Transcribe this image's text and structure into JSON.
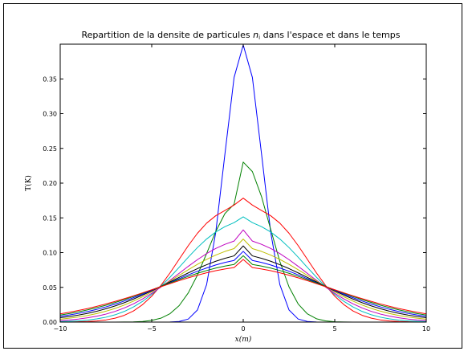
{
  "chart_data": {
    "type": "line",
    "title_main": "Repartition de la densite de particules ",
    "title_symbol": "n",
    "title_subscript": "i",
    "title_tail": " dans l'espace et dans le temps",
    "xlabel": "x(m)",
    "ylabel": "T(K)",
    "xlim": [
      -10,
      10
    ],
    "ylim": [
      0,
      0.4
    ],
    "x_ticks": [
      "−10",
      "−5",
      "0",
      "5",
      "10"
    ],
    "y_ticks": [
      "0.00",
      "0.05",
      "0.10",
      "0.15",
      "0.20",
      "0.25",
      "0.30",
      "0.35"
    ],
    "grid": false,
    "legend": "none",
    "x": [
      -10,
      -9.5,
      -9,
      -8.5,
      -8,
      -7.5,
      -7,
      -6.5,
      -6,
      -5.5,
      -5,
      -4.5,
      -4,
      -3.5,
      -3,
      -2.5,
      -2,
      -1.5,
      -1,
      -0.5,
      0,
      0.5,
      1,
      1.5,
      2,
      2.5,
      3,
      3.5,
      4,
      4.5,
      5,
      5.5,
      6,
      6.5,
      7,
      7.5,
      8,
      8.5,
      9,
      9.5,
      10
    ],
    "series": [
      {
        "color": "#0000ff",
        "values": [
          0.0,
          0.0,
          0.0,
          0.0,
          0.0,
          0.0,
          0.0,
          0.0,
          0.0,
          0.0,
          0.0,
          0.0,
          0.0001,
          0.0009,
          0.0044,
          0.0175,
          0.054,
          0.1295,
          0.242,
          0.3521,
          0.3989,
          0.3521,
          0.242,
          0.1295,
          0.054,
          0.0175,
          0.0044,
          0.0009,
          0.0001,
          0.0,
          0.0,
          0.0,
          0.0,
          0.0,
          0.0,
          0.0,
          0.0,
          0.0,
          0.0,
          0.0,
          0.0
        ]
      },
      {
        "color": "#008000",
        "values": [
          0.0,
          0.0,
          0.0,
          0.0,
          0.0,
          0.0,
          0.0,
          0.0001,
          0.0003,
          0.0009,
          0.0024,
          0.0056,
          0.0121,
          0.0237,
          0.0421,
          0.0678,
          0.0988,
          0.1305,
          0.1562,
          0.1696,
          0.2303,
          0.2166,
          0.1806,
          0.1334,
          0.0873,
          0.0507,
          0.0261,
          0.0119,
          0.0048,
          0.0017,
          0.0005,
          0.0001,
          0.0,
          0.0,
          0.0,
          0.0,
          0.0,
          0.0,
          0.0,
          0.0,
          0.0
        ]
      },
      {
        "color": "#ff0000",
        "values": [
          0.0001,
          0.0002,
          0.0004,
          0.0008,
          0.0016,
          0.0031,
          0.0056,
          0.0097,
          0.016,
          0.0251,
          0.0373,
          0.0527,
          0.0708,
          0.0905,
          0.1101,
          0.1279,
          0.1424,
          0.1531,
          0.1606,
          0.1684,
          0.1784,
          0.1684,
          0.1606,
          0.1531,
          0.1424,
          0.1279,
          0.1101,
          0.0905,
          0.0708,
          0.0527,
          0.0373,
          0.0251,
          0.016,
          0.0097,
          0.0056,
          0.0031,
          0.0016,
          0.0008,
          0.0004,
          0.0002,
          0.0001
        ]
      },
      {
        "color": "#00bfbf",
        "values": [
          0.0007,
          0.0011,
          0.0018,
          0.0029,
          0.0046,
          0.007,
          0.0105,
          0.0153,
          0.0217,
          0.0298,
          0.0397,
          0.0514,
          0.0646,
          0.0788,
          0.0934,
          0.1073,
          0.1196,
          0.1297,
          0.1374,
          0.1431,
          0.1515,
          0.1431,
          0.1374,
          0.1297,
          0.1196,
          0.1073,
          0.0934,
          0.0788,
          0.0646,
          0.0514,
          0.0397,
          0.0298,
          0.0217,
          0.0153,
          0.0105,
          0.007,
          0.0046,
          0.0029,
          0.0018,
          0.0011,
          0.0007
        ]
      },
      {
        "color": "#bf00bf",
        "values": [
          0.0022,
          0.0031,
          0.0044,
          0.0062,
          0.0085,
          0.0115,
          0.0154,
          0.0203,
          0.0262,
          0.0333,
          0.0414,
          0.0504,
          0.0601,
          0.0702,
          0.0803,
          0.0899,
          0.0986,
          0.106,
          0.1119,
          0.1166,
          0.1327,
          0.1166,
          0.1119,
          0.106,
          0.0986,
          0.0899,
          0.0803,
          0.0702,
          0.0601,
          0.0504,
          0.0414,
          0.0333,
          0.0262,
          0.0203,
          0.0154,
          0.0115,
          0.0085,
          0.0062,
          0.0044,
          0.0031,
          0.0022
        ]
      },
      {
        "color": "#bfbf00",
        "values": [
          0.0042,
          0.0056,
          0.0073,
          0.0095,
          0.0123,
          0.0157,
          0.0197,
          0.0245,
          0.0301,
          0.0364,
          0.0435,
          0.0511,
          0.0591,
          0.0673,
          0.0754,
          0.0832,
          0.0903,
          0.0965,
          0.1017,
          0.1058,
          0.1195,
          0.1058,
          0.1017,
          0.0965,
          0.0903,
          0.0832,
          0.0754,
          0.0673,
          0.0591,
          0.0511,
          0.0435,
          0.0364,
          0.0301,
          0.0245,
          0.0197,
          0.0157,
          0.0123,
          0.0095,
          0.0073,
          0.0056,
          0.0042
        ]
      },
      {
        "color": "#000000",
        "values": [
          0.0063,
          0.008,
          0.0101,
          0.0126,
          0.0156,
          0.0192,
          0.0233,
          0.0279,
          0.0331,
          0.0388,
          0.0449,
          0.0513,
          0.0578,
          0.0644,
          0.0708,
          0.077,
          0.0826,
          0.0876,
          0.0918,
          0.0953,
          0.1097,
          0.0953,
          0.0918,
          0.0876,
          0.0826,
          0.077,
          0.0708,
          0.0644,
          0.0578,
          0.0513,
          0.0449,
          0.0388,
          0.0331,
          0.0279,
          0.0233,
          0.0192,
          0.0156,
          0.0126,
          0.0101,
          0.008,
          0.0063
        ]
      },
      {
        "color": "#0000ff",
        "values": [
          0.0082,
          0.0102,
          0.0125,
          0.0152,
          0.0183,
          0.0219,
          0.0259,
          0.0303,
          0.0351,
          0.0402,
          0.0456,
          0.0512,
          0.0569,
          0.0625,
          0.068,
          0.0732,
          0.0779,
          0.0822,
          0.0858,
          0.0887,
          0.1018,
          0.0887,
          0.0858,
          0.0822,
          0.0779,
          0.0732,
          0.068,
          0.0625,
          0.0569,
          0.0512,
          0.0456,
          0.0402,
          0.0351,
          0.0303,
          0.0259,
          0.0219,
          0.0183,
          0.0152,
          0.0125,
          0.0102,
          0.0082
        ]
      },
      {
        "color": "#008000",
        "values": [
          0.0101,
          0.0123,
          0.0148,
          0.0176,
          0.0208,
          0.0243,
          0.0282,
          0.0324,
          0.0368,
          0.0415,
          0.0463,
          0.0513,
          0.0562,
          0.0611,
          0.0658,
          0.0702,
          0.0742,
          0.0777,
          0.0806,
          0.0829,
          0.0955,
          0.0829,
          0.0806,
          0.0777,
          0.0742,
          0.0702,
          0.0658,
          0.0611,
          0.0562,
          0.0513,
          0.0463,
          0.0415,
          0.0368,
          0.0324,
          0.0282,
          0.0243,
          0.0208,
          0.0176,
          0.0148,
          0.0123,
          0.0101
        ]
      },
      {
        "color": "#ff0000",
        "values": [
          0.0118,
          0.0141,
          0.0167,
          0.0195,
          0.0227,
          0.0261,
          0.0298,
          0.0337,
          0.0378,
          0.0421,
          0.0465,
          0.0509,
          0.0553,
          0.0596,
          0.0637,
          0.0675,
          0.071,
          0.074,
          0.0765,
          0.0784,
          0.0902,
          0.0784,
          0.0765,
          0.074,
          0.071,
          0.0675,
          0.0637,
          0.0596,
          0.0553,
          0.0509,
          0.0465,
          0.0421,
          0.0378,
          0.0337,
          0.0298,
          0.0261,
          0.0227,
          0.0195,
          0.0167,
          0.0141,
          0.0118
        ]
      }
    ]
  }
}
